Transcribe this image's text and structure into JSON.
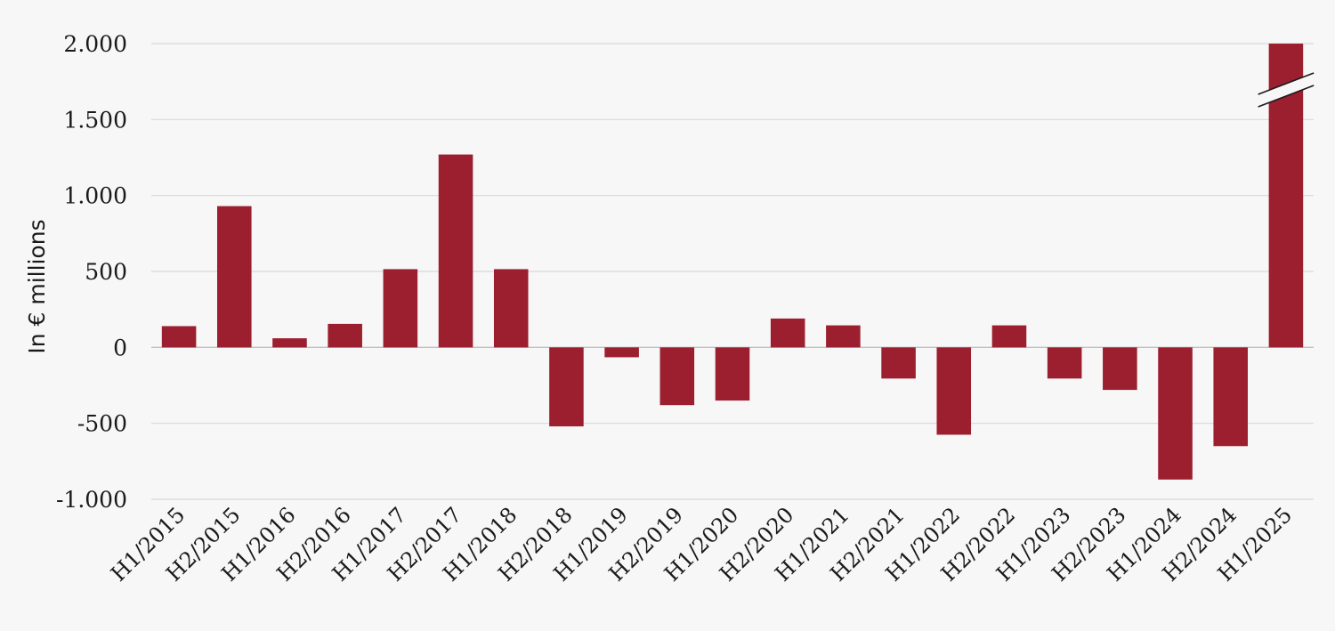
{
  "chart_data": {
    "type": "bar",
    "ylabel": "In € millions",
    "ylim": [
      -1000,
      2000
    ],
    "yticks": [
      2000,
      1500,
      1000,
      500,
      0,
      -500,
      -1000
    ],
    "ytick_labels": [
      "2.000",
      "1.500",
      "1.000",
      "500",
      "0",
      "-500",
      "-1.000"
    ],
    "grid": true,
    "axis_break_on_last_bar": true,
    "bar_color": "#9b1f2f",
    "categories": [
      "H1/2015",
      "H2/2015",
      "H1/2016",
      "H2/2016",
      "H1/2017",
      "H2/2017",
      "H1/2018",
      "H2/2018",
      "H1/2019",
      "H2/2019",
      "H1/2020",
      "H2/2020",
      "H1/2021",
      "H2/2021",
      "H1/2022",
      "H2/2022",
      "H1/2023",
      "H2/2023",
      "H1/2024",
      "H2/2024",
      "H1/2025"
    ],
    "values": [
      140,
      930,
      60,
      155,
      515,
      1270,
      515,
      -520,
      -65,
      -380,
      -350,
      190,
      145,
      -205,
      -575,
      145,
      -205,
      -280,
      -870,
      -650,
      2000
    ]
  }
}
